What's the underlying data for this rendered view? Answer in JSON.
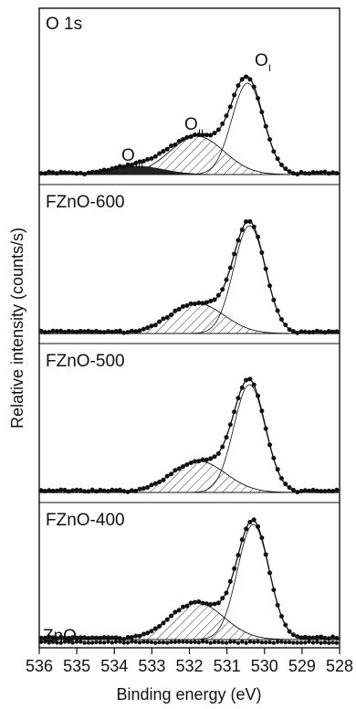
{
  "chart_data": {
    "type": "line",
    "xlabel": "Binding energy (eV)",
    "ylabel": "Relative intensity (counts/s)",
    "xlim": [
      536,
      528
    ],
    "x_reversed": true,
    "x_ticks": [
      "536",
      "535",
      "534",
      "533",
      "532",
      "531",
      "530",
      "529",
      "528"
    ],
    "x_tick_values": [
      536,
      535,
      534,
      533,
      532,
      531,
      530,
      529,
      528
    ],
    "colors": {
      "axis": "#111111",
      "data": "#111111",
      "hatch": "#333333",
      "o3_fill": "#222222"
    },
    "peak_labels": [
      {
        "main": "O",
        "sub": "I"
      },
      {
        "main": "O",
        "sub": "II"
      },
      {
        "main": "O",
        "sub": "III"
      }
    ],
    "panels": [
      {
        "label": "O 1s",
        "peaks": {
          "OI": {
            "center": 530.45,
            "height": 100
          },
          "OII": {
            "center": 531.8,
            "height": 42
          },
          "OIII": {
            "center": 533.4,
            "height": 9
          }
        },
        "series": [
          {
            "name": "O I"
          },
          {
            "name": "O II"
          },
          {
            "name": "O III"
          }
        ]
      },
      {
        "label": "FZnO-600",
        "peaks": {
          "OI": {
            "center": 530.4,
            "height": 100
          },
          "OII": {
            "center": 531.8,
            "height": 28
          }
        },
        "series": [
          {
            "name": "O I"
          },
          {
            "name": "O II"
          }
        ]
      },
      {
        "label": "FZnO-500",
        "peaks": {
          "OI": {
            "center": 530.4,
            "height": 100
          },
          "OII": {
            "center": 531.75,
            "height": 29
          }
        },
        "series": [
          {
            "name": "O I"
          },
          {
            "name": "O II"
          }
        ]
      },
      {
        "label": "FZnO-400",
        "peaks": {
          "OI": {
            "center": 530.3,
            "height": 100
          },
          "OII": {
            "center": 531.8,
            "height": 32
          }
        },
        "series": [
          {
            "name": "O I"
          },
          {
            "name": "O II"
          }
        ]
      },
      {
        "label": "ZnO",
        "peaks": {},
        "series": []
      }
    ]
  }
}
